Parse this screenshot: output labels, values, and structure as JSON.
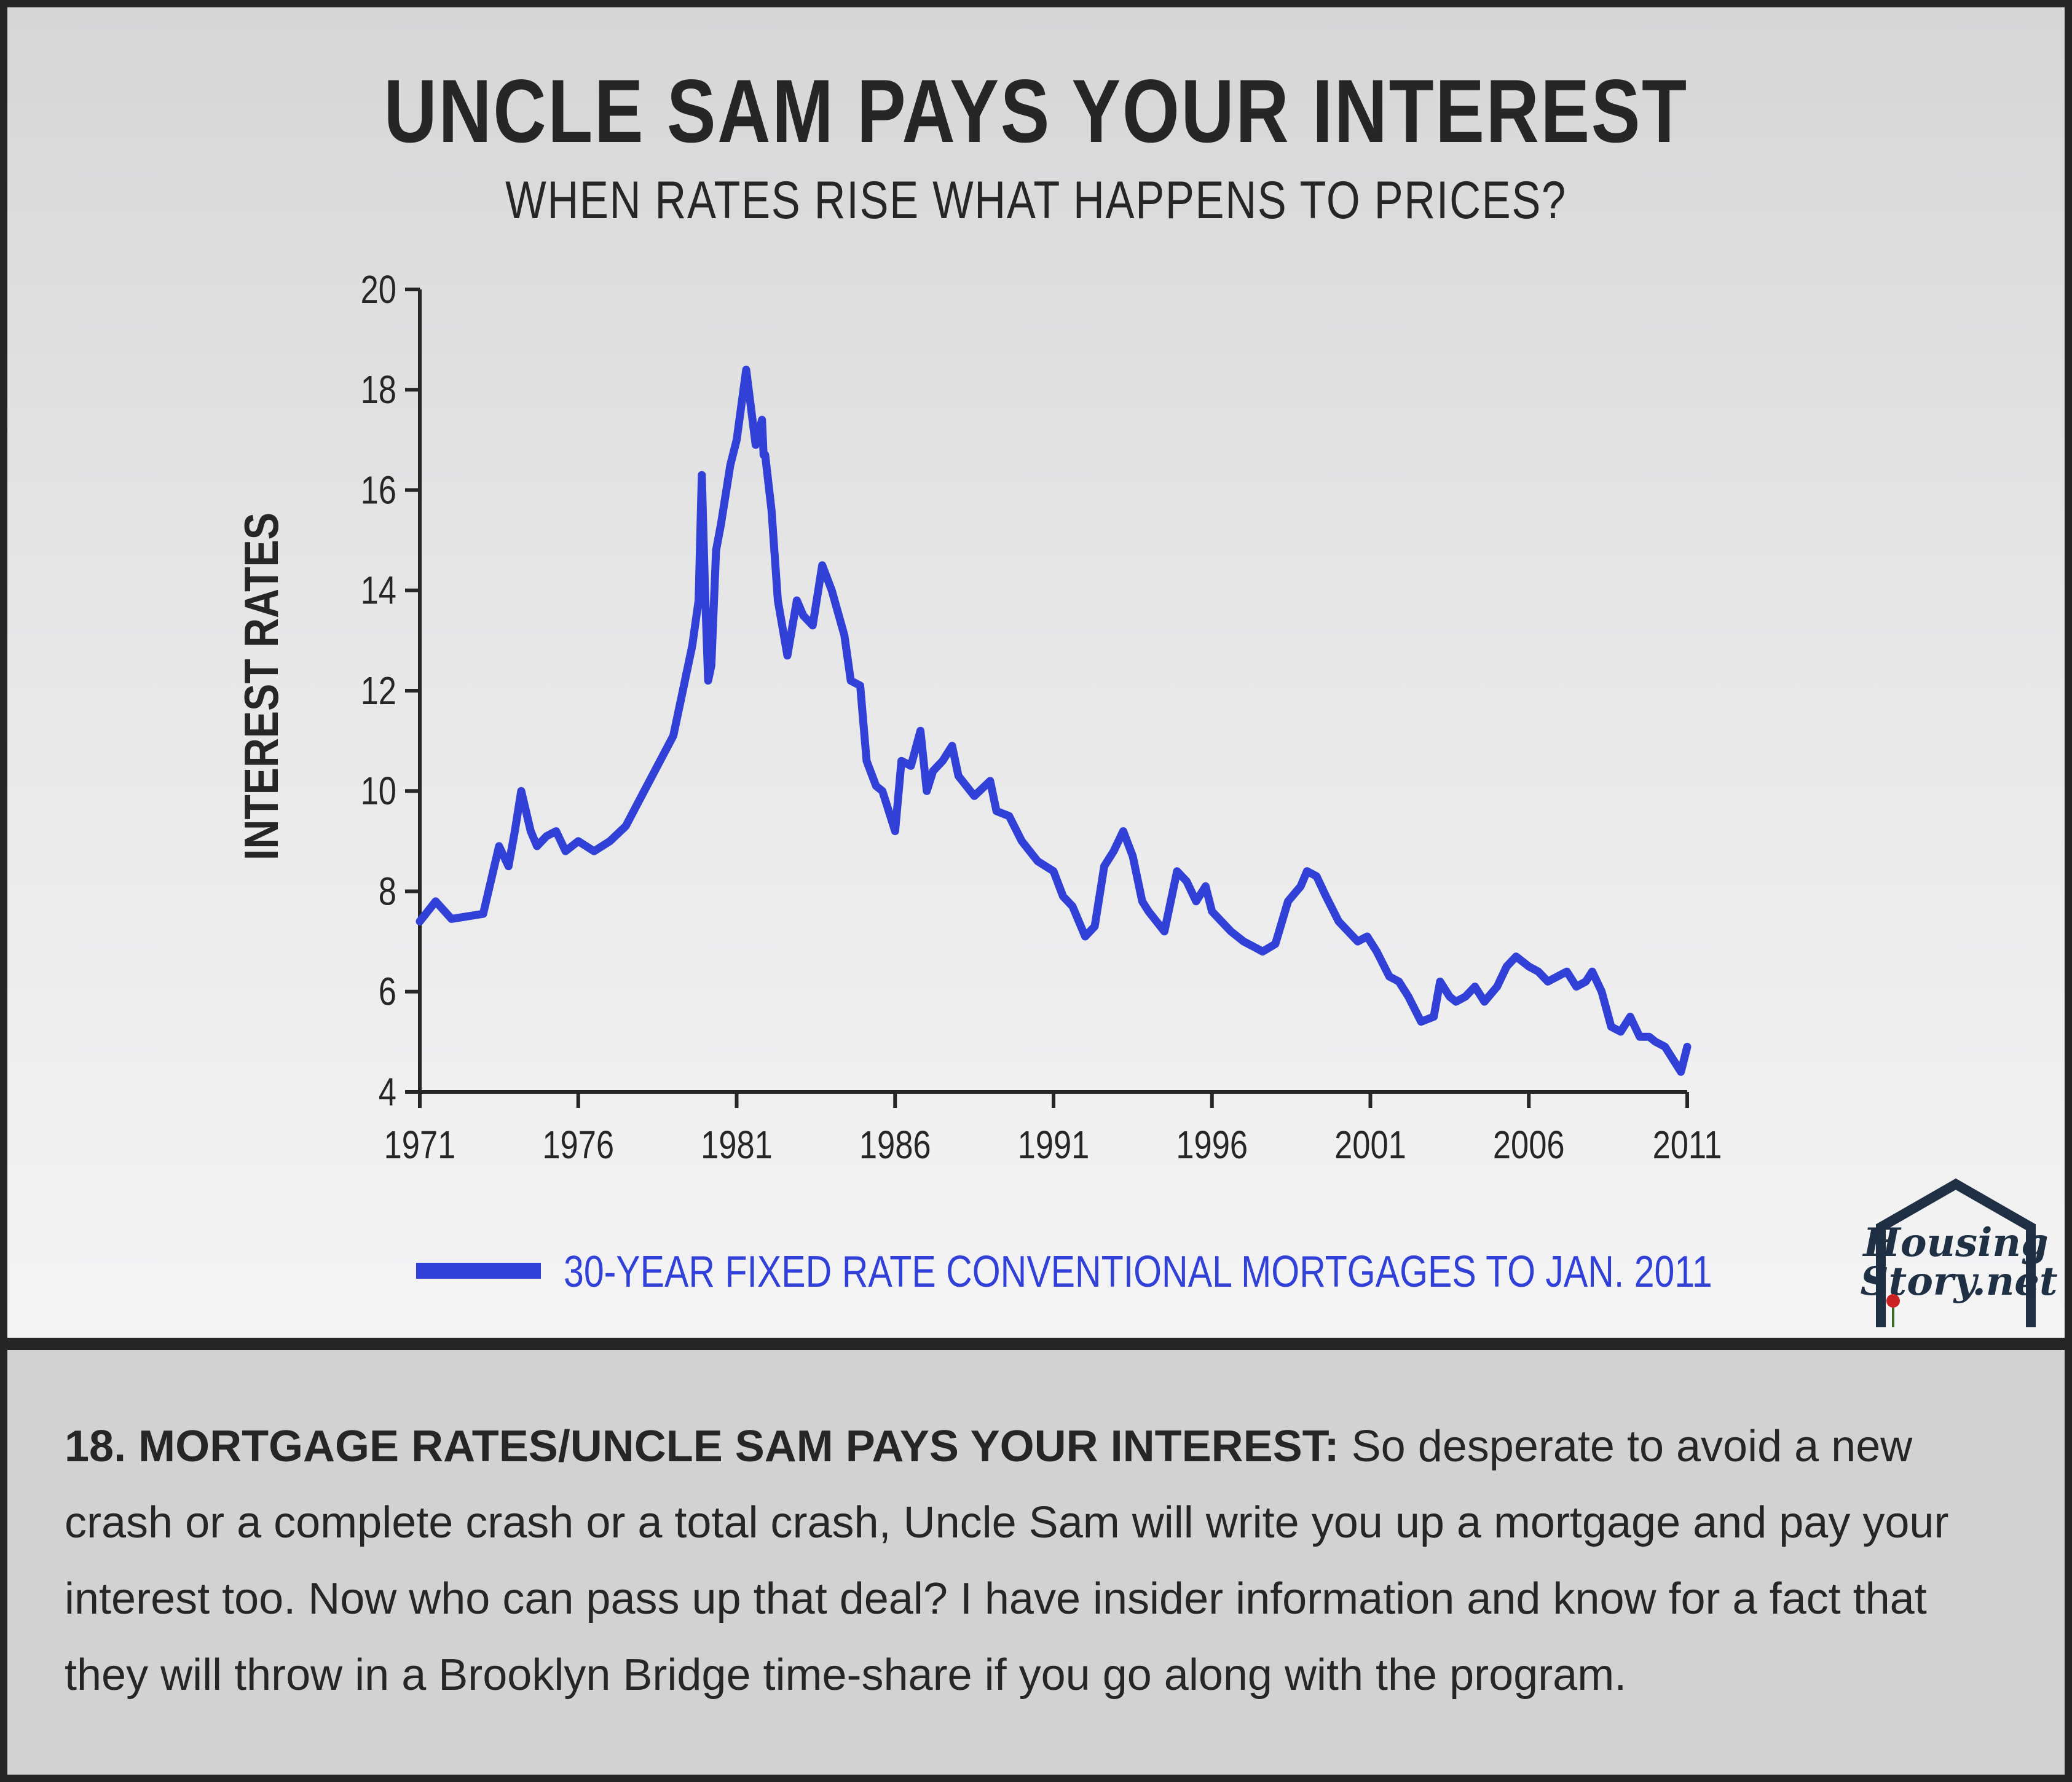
{
  "title": "UNCLE SAM PAYS YOUR INTEREST",
  "subtitle": "WHEN RATES RISE WHAT HAPPENS TO PRICES?",
  "legend_label": "30-YEAR FIXED RATE CONVENTIONAL MORTGAGES TO JAN. 2011",
  "logo": {
    "line1": "Housing",
    "line2": "Story.net"
  },
  "caption": {
    "lead": "18. MORTGAGE RATES/UNCLE SAM PAYS YOUR INTEREST:",
    "body": " So desperate to avoid a new crash or a complete crash or a total crash, Uncle Sam will write you up a mortgage and pay your interest too. Now who can pass up that deal? I have insider information and know for a fact that they will throw in a Brooklyn Bridge time-share if you go along with the program."
  },
  "colors": {
    "series": "#3140d6",
    "text": "#262626",
    "frame": "#262626"
  },
  "chart_data": {
    "type": "line",
    "ylabel": "INTEREST RATES",
    "xlabel": "",
    "xlim": [
      1971,
      2011
    ],
    "ylim": [
      4,
      20
    ],
    "x_ticks": [
      "1971",
      "1976",
      "1981",
      "1986",
      "1991",
      "1996",
      "2001",
      "2006",
      "2011"
    ],
    "y_ticks": [
      "4",
      "6",
      "8",
      "10",
      "12",
      "14",
      "16",
      "18",
      "20"
    ],
    "legend_position": "bottom",
    "series": [
      {
        "name": "30-YEAR FIXED RATE CONVENTIONAL MORTGAGES TO JAN. 2011",
        "x": [
          1971.0,
          1971.5,
          1972.0,
          1972.5,
          1973.0,
          1973.5,
          1973.8,
          1974.0,
          1974.2,
          1974.5,
          1974.7,
          1975.0,
          1975.3,
          1975.6,
          1976.0,
          1976.5,
          1977.0,
          1977.5,
          1978.0,
          1978.5,
          1979.0,
          1979.3,
          1979.6,
          1979.8,
          1979.9,
          1980.0,
          1980.1,
          1980.2,
          1980.35,
          1980.5,
          1980.8,
          1981.0,
          1981.3,
          1981.6,
          1981.8,
          1981.85,
          1981.9,
          1982.1,
          1982.3,
          1982.6,
          1982.9,
          1983.1,
          1983.4,
          1983.7,
          1984.0,
          1984.4,
          1984.6,
          1984.9,
          1985.1,
          1985.4,
          1985.6,
          1986.0,
          1986.2,
          1986.5,
          1986.8,
          1987.0,
          1987.2,
          1987.5,
          1987.8,
          1988.0,
          1988.5,
          1989.0,
          1989.2,
          1989.6,
          1990.0,
          1990.5,
          1991.0,
          1991.3,
          1991.6,
          1992.0,
          1992.3,
          1992.6,
          1992.9,
          1993.2,
          1993.5,
          1993.8,
          1994.0,
          1994.5,
          1994.9,
          1995.2,
          1995.5,
          1995.8,
          1996.0,
          1996.3,
          1996.6,
          1997.0,
          1997.3,
          1997.6,
          1998.0,
          1998.4,
          1998.8,
          1999.0,
          1999.3,
          1999.6,
          2000.0,
          2000.3,
          2000.6,
          2000.9,
          2001.2,
          2001.6,
          2001.9,
          2002.2,
          2002.6,
          2003.0,
          2003.2,
          2003.5,
          2003.7,
          2004.0,
          2004.3,
          2004.6,
          2005.0,
          2005.3,
          2005.6,
          2006.0,
          2006.3,
          2006.6,
          2006.9,
          2007.2,
          2007.5,
          2007.8,
          2008.0,
          2008.3,
          2008.6,
          2008.9,
          2009.2,
          2009.5,
          2009.8,
          2010.0,
          2010.3,
          2010.6,
          2010.8,
          2011.0
        ],
        "values": [
          7.4,
          7.8,
          7.45,
          7.5,
          7.55,
          8.9,
          8.5,
          9.2,
          10.0,
          9.2,
          8.9,
          9.1,
          9.2,
          8.8,
          9.0,
          8.8,
          9.0,
          9.3,
          9.9,
          10.5,
          11.1,
          12.0,
          12.9,
          13.8,
          16.3,
          14.0,
          12.2,
          12.5,
          14.8,
          15.3,
          16.5,
          17.0,
          18.4,
          16.9,
          17.4,
          16.7,
          16.7,
          15.6,
          13.8,
          12.7,
          13.8,
          13.5,
          13.3,
          14.5,
          14.0,
          13.1,
          12.2,
          12.1,
          10.6,
          10.1,
          10.0,
          9.2,
          10.6,
          10.5,
          11.2,
          10.0,
          10.4,
          10.6,
          10.9,
          10.3,
          9.9,
          10.2,
          9.6,
          9.5,
          9.0,
          8.6,
          8.4,
          7.9,
          7.7,
          7.1,
          7.3,
          8.5,
          8.8,
          9.2,
          8.7,
          7.8,
          7.6,
          7.2,
          8.4,
          8.2,
          7.8,
          8.1,
          7.6,
          7.4,
          7.2,
          7.0,
          6.9,
          6.8,
          6.95,
          7.8,
          8.1,
          8.4,
          8.3,
          7.9,
          7.4,
          7.2,
          7.0,
          7.1,
          6.8,
          6.3,
          6.2,
          5.9,
          5.4,
          5.5,
          6.2,
          5.9,
          5.8,
          5.9,
          6.1,
          5.8,
          6.1,
          6.5,
          6.7,
          6.5,
          6.4,
          6.2,
          6.3,
          6.4,
          6.1,
          6.2,
          6.4,
          6.0,
          5.3,
          5.2,
          5.5,
          5.1,
          5.1,
          5.0,
          4.9,
          4.6,
          4.4,
          4.9
        ]
      }
    ]
  }
}
